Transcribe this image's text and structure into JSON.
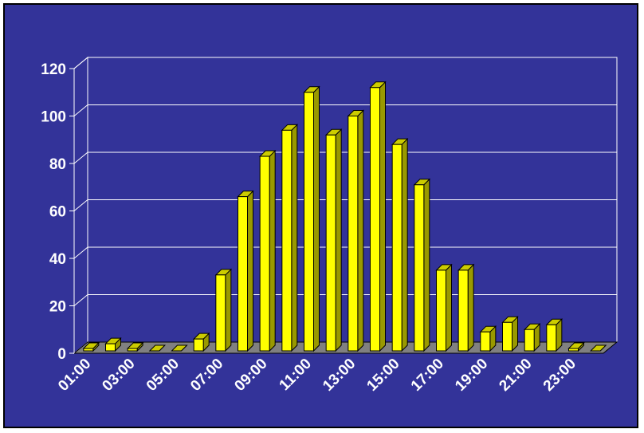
{
  "chart_data": {
    "type": "bar",
    "title": "",
    "xlabel": "",
    "ylabel": "",
    "categories": [
      "01:00",
      "02:00",
      "03:00",
      "04:00",
      "05:00",
      "06:00",
      "07:00",
      "08:00",
      "09:00",
      "10:00",
      "11:00",
      "12:00",
      "13:00",
      "14:00",
      "15:00",
      "16:00",
      "17:00",
      "18:00",
      "19:00",
      "20:00",
      "21:00",
      "22:00",
      "23:00",
      "24:00"
    ],
    "tick_labels_x": [
      "01:00",
      "03:00",
      "05:00",
      "07:00",
      "09:00",
      "11:00",
      "13:00",
      "15:00",
      "17:00",
      "19:00",
      "21:00",
      "23:00"
    ],
    "values": [
      1,
      3,
      1,
      0,
      0,
      5,
      32,
      65,
      82,
      93,
      109,
      91,
      99,
      111,
      87,
      70,
      34,
      34,
      8,
      12,
      9,
      11,
      1,
      0
    ],
    "yticks": [
      0,
      20,
      40,
      60,
      80,
      100,
      120
    ],
    "ylim": [
      0,
      120
    ],
    "grid": true,
    "legend": "none",
    "colors": {
      "background": "#333399",
      "bar_front": "#ffff00",
      "bar_side": "#999900",
      "bar_top": "#cccc00",
      "floor": "#808080",
      "gridline": "#ffffff",
      "text": "#ffffff"
    }
  }
}
